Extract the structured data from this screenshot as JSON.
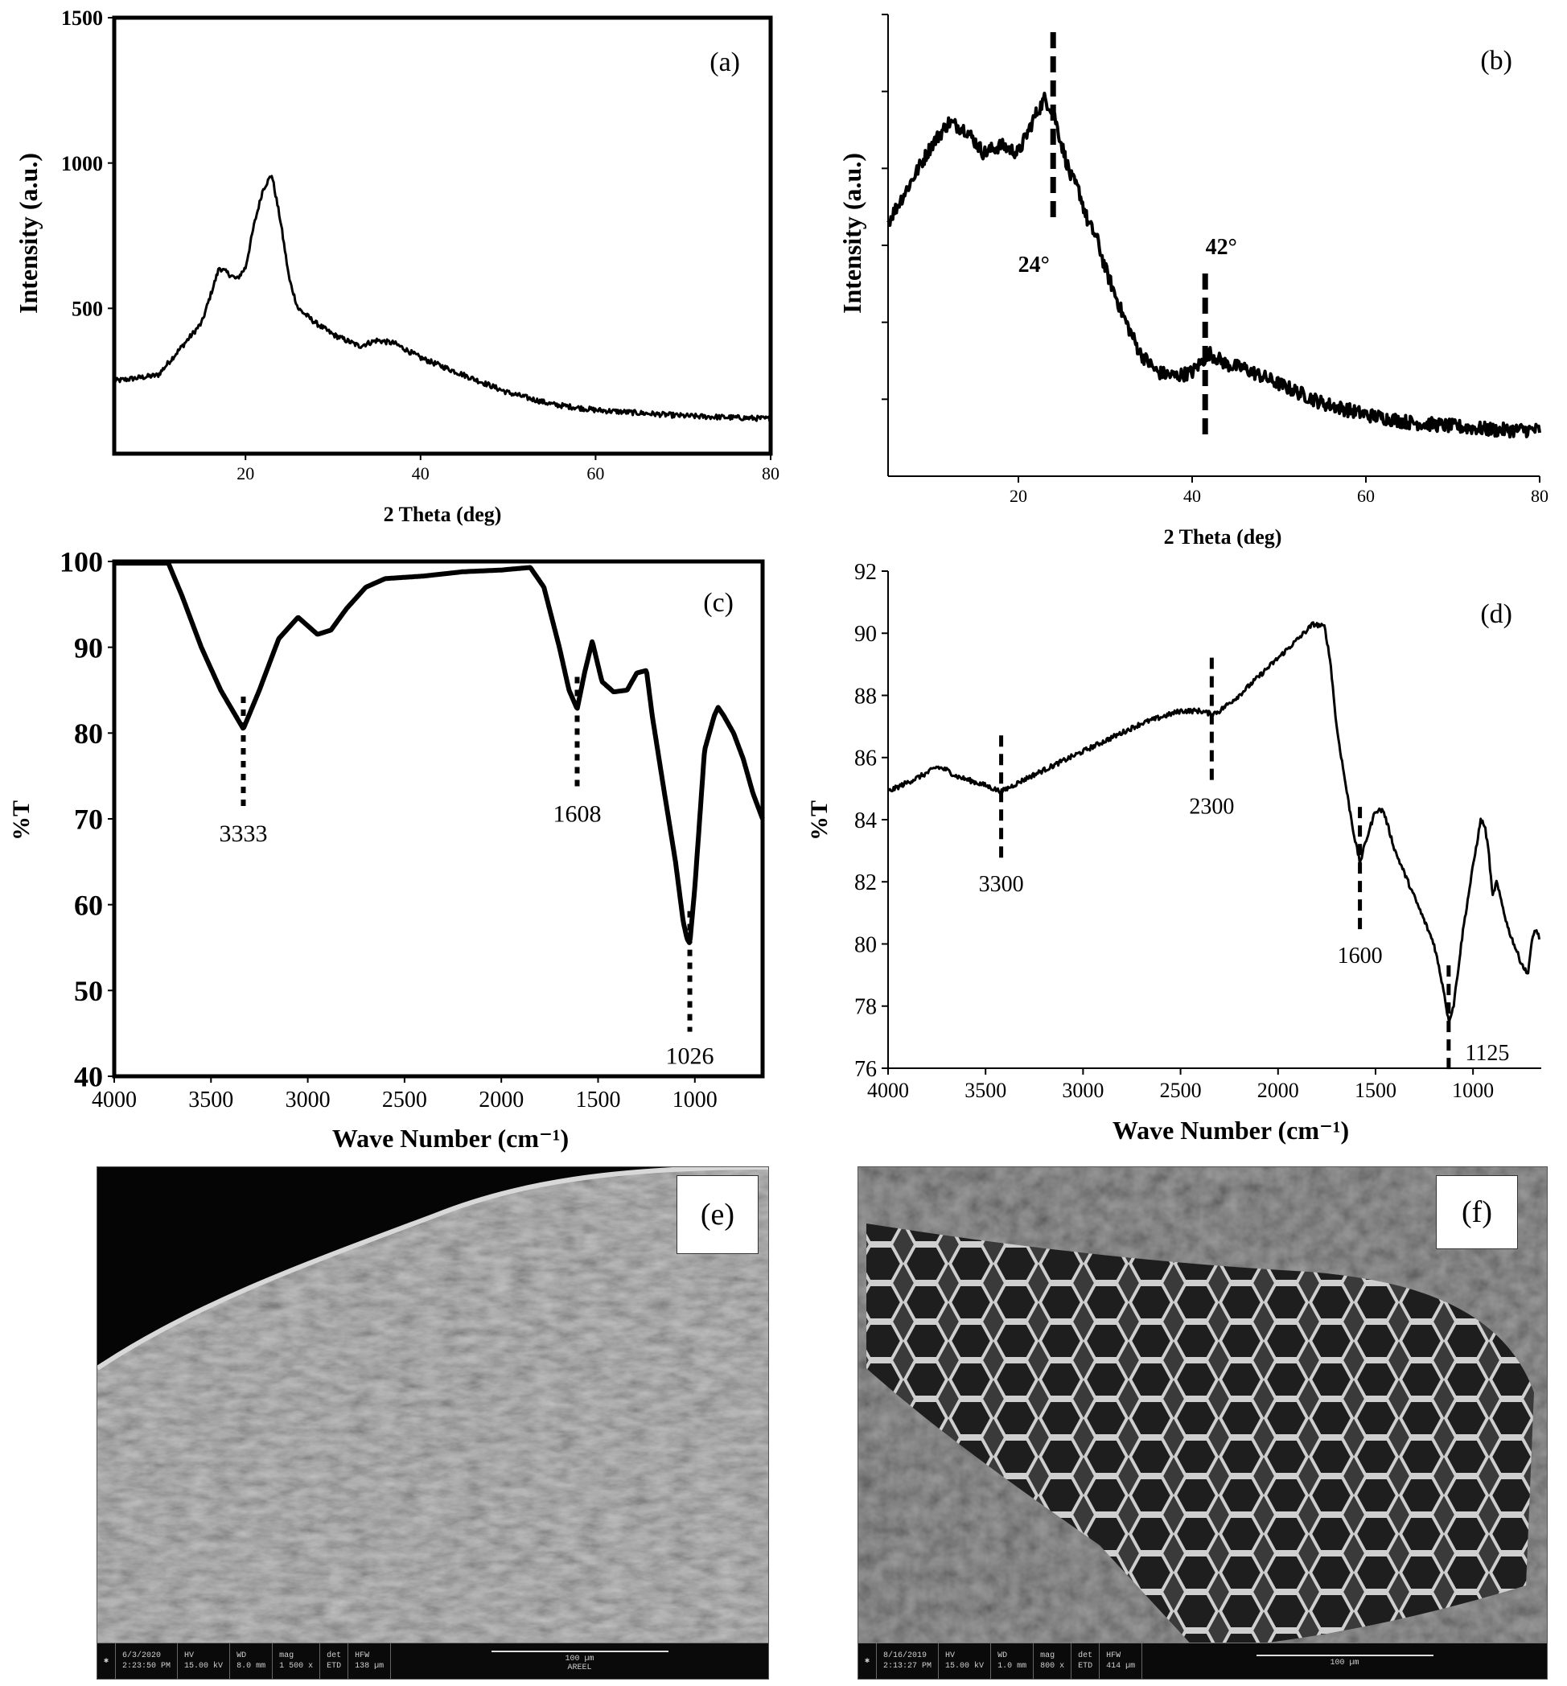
{
  "chart_data": [
    {
      "panel": "(a)",
      "type": "line",
      "xlabel": "2 Theta (deg)",
      "ylabel": "Intensity (a.u.)",
      "xlim": [
        5,
        80
      ],
      "ylim": [
        0,
        1500
      ],
      "xticks": [
        "20",
        "40",
        "60",
        "80"
      ],
      "yticks": [
        "500",
        "1000",
        "1500"
      ],
      "series": [
        {
          "x": [
            5,
            10,
            15,
            17,
            19,
            20,
            21,
            22,
            23,
            24,
            25,
            26,
            28,
            30,
            33,
            35,
            37,
            40,
            45,
            50,
            55,
            60,
            65,
            70,
            75,
            80
          ],
          "y": [
            250,
            270,
            450,
            640,
            600,
            640,
            790,
            910,
            960,
            800,
            600,
            500,
            450,
            410,
            370,
            390,
            380,
            330,
            270,
            210,
            170,
            150,
            140,
            130,
            125,
            120
          ]
        }
      ]
    },
    {
      "panel": "(b)",
      "type": "line",
      "xlabel": "2 Theta (deg)",
      "ylabel": "Intensity (a.u.)",
      "xlim": [
        5,
        80
      ],
      "ylim": [
        0,
        6
      ],
      "xticks": [
        "20",
        "40",
        "60",
        "80"
      ],
      "annotations": [
        {
          "x": 24,
          "label": "24°"
        },
        {
          "x": 41.5,
          "label": "42°"
        }
      ],
      "series": [
        {
          "x": [
            5,
            7,
            10,
            12,
            14,
            16,
            18,
            20,
            22,
            23,
            24,
            25,
            26,
            27,
            28,
            29,
            30,
            32,
            34,
            36,
            38,
            40,
            42,
            44,
            46,
            50,
            55,
            60,
            65,
            70,
            75,
            80
          ],
          "y": [
            3.3,
            3.7,
            4.3,
            4.6,
            4.5,
            4.2,
            4.3,
            4.2,
            4.7,
            4.9,
            4.75,
            4.3,
            3.9,
            3.7,
            3.3,
            3.1,
            2.7,
            2.1,
            1.6,
            1.35,
            1.3,
            1.35,
            1.6,
            1.45,
            1.4,
            1.2,
            0.95,
            0.8,
            0.7,
            0.65,
            0.6,
            0.6
          ]
        }
      ]
    },
    {
      "panel": "(c)",
      "type": "line",
      "xlabel": "Wave Number (cm⁻¹)",
      "ylabel": "%T",
      "xlim": [
        4000,
        650
      ],
      "ylim": [
        40,
        100
      ],
      "xticks": [
        "4000",
        "3500",
        "3000",
        "2500",
        "2000",
        "1500",
        "1000"
      ],
      "yticks": [
        "40",
        "50",
        "60",
        "70",
        "80",
        "90",
        "100"
      ],
      "annotations": [
        {
          "x": 3333,
          "label": "3333"
        },
        {
          "x": 1608,
          "label": "1608"
        },
        {
          "x": 1026,
          "label": "1026"
        }
      ],
      "series": [
        {
          "x": [
            4000,
            3720,
            3650,
            3550,
            3450,
            3333,
            3250,
            3150,
            3050,
            2950,
            2880,
            2800,
            2700,
            2600,
            2400,
            2200,
            2000,
            1850,
            1780,
            1700,
            1650,
            1608,
            1570,
            1530,
            1480,
            1420,
            1350,
            1300,
            1250,
            1220,
            1150,
            1100,
            1060,
            1040,
            1026,
            1000,
            950,
            900,
            880,
            850,
            800,
            750,
            700,
            650
          ],
          "y": [
            99.8,
            99.8,
            96,
            90,
            85,
            80.5,
            85,
            91,
            93.5,
            91.5,
            92,
            94.5,
            97,
            98,
            98.3,
            98.8,
            99,
            99.3,
            97,
            90,
            85,
            82.8,
            87,
            90.7,
            86,
            84.8,
            85,
            87,
            87.3,
            82,
            72,
            65,
            58,
            56,
            55.5,
            62,
            78,
            82,
            83,
            82,
            80,
            77,
            73,
            70
          ]
        }
      ]
    },
    {
      "panel": "(d)",
      "type": "line",
      "xlabel": "Wave Number (cm⁻¹)",
      "ylabel": "%T",
      "xlim": [
        4000,
        650
      ],
      "ylim": [
        76,
        92
      ],
      "xticks": [
        "4000",
        "3500",
        "3000",
        "2500",
        "2000",
        "1500",
        "1000"
      ],
      "yticks": [
        "76",
        "78",
        "80",
        "82",
        "84",
        "86",
        "88",
        "90",
        "92"
      ],
      "annotations": [
        {
          "x": 3420,
          "label": "3300"
        },
        {
          "x": 2340,
          "label": "2300"
        },
        {
          "x": 1580,
          "label": "1600"
        },
        {
          "x": 1125,
          "label": "1125"
        }
      ],
      "series": [
        {
          "x": [
            4000,
            3900,
            3800,
            3750,
            3700,
            3650,
            3600,
            3500,
            3420,
            3300,
            3100,
            2900,
            2700,
            2500,
            2400,
            2340,
            2300,
            2200,
            2100,
            2000,
            1900,
            1820,
            1760,
            1730,
            1700,
            1650,
            1610,
            1580,
            1550,
            1500,
            1460,
            1400,
            1300,
            1200,
            1150,
            1125,
            1100,
            1050,
            1000,
            960,
            940,
            920,
            900,
            880,
            860,
            820,
            790,
            760,
            720,
            700,
            680,
            660
          ],
          "y": [
            84.9,
            85.2,
            85.5,
            85.7,
            85.6,
            85.4,
            85.3,
            85.1,
            84.9,
            85.3,
            85.9,
            86.5,
            87.1,
            87.5,
            87.5,
            87.4,
            87.5,
            88,
            88.6,
            89.2,
            89.8,
            90.3,
            90.2,
            89,
            87,
            85,
            83.5,
            82.6,
            83.3,
            84.3,
            84.3,
            83,
            81.5,
            80,
            78.5,
            77.5,
            78,
            80.5,
            82.5,
            84,
            83.8,
            83,
            81.5,
            82,
            81.5,
            80.5,
            80,
            79.5,
            79,
            80,
            80.5,
            80.2
          ]
        }
      ]
    }
  ],
  "sem": {
    "e": {
      "label": "(e)",
      "cells": [
        "6/3/2020\n2:23:50 PM",
        "HV\n15.00 kV",
        "WD\n8.0 mm",
        "mag\n1 500 x",
        "det\nETD",
        "HFW\n138 µm"
      ],
      "scale": "100 µm",
      "footer": "AREEL"
    },
    "f": {
      "label": "(f)",
      "cells": [
        "8/16/2019\n2:13:27 PM",
        "HV\n15.00 kV",
        "WD\n1.0 mm",
        "mag\n800 x",
        "det\nETD",
        "HFW\n414 µm"
      ],
      "scale": "100 µm"
    }
  }
}
